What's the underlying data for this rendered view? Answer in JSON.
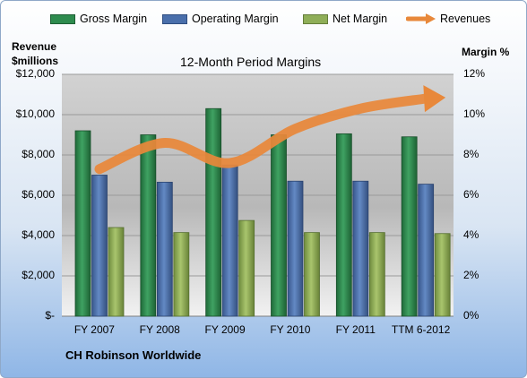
{
  "legend": {
    "gross": "Gross Margin",
    "operating": "Operating Margin",
    "net": "Net Margin",
    "revenues": "Revenues"
  },
  "title": "12-Month Period Margins",
  "left_axis_title": [
    "Revenue",
    "$millions"
  ],
  "right_axis_title": "Margin %",
  "footer": "CH Robinson Worldwide",
  "colors": {
    "gross": "#2e8b4e",
    "operating": "#4a6fab",
    "net": "#8fae58",
    "revenues": "#e8883a"
  },
  "chart_data": {
    "type": "bar",
    "categories": [
      "FY 2007",
      "FY 2008",
      "FY 2009",
      "FY 2010",
      "FY 2011",
      "TTM 6-2012"
    ],
    "series": [
      {
        "name": "Gross Margin",
        "axis": "right",
        "values": [
          9.2,
          9.0,
          10.3,
          9.0,
          9.05,
          8.9
        ]
      },
      {
        "name": "Operating Margin",
        "axis": "right",
        "values": [
          7.0,
          6.65,
          7.5,
          6.7,
          6.7,
          6.55
        ]
      },
      {
        "name": "Net Margin",
        "axis": "right",
        "values": [
          4.4,
          4.15,
          4.75,
          4.15,
          4.15,
          4.1
        ]
      },
      {
        "name": "Revenues",
        "axis": "left",
        "type": "line",
        "values": [
          7300,
          8600,
          7600,
          9300,
          10300,
          10800
        ]
      }
    ],
    "left_axis": {
      "ticks": [
        "$12,000",
        "$10,000",
        "$8,000",
        "$6,000",
        "$4,000",
        "$2,000",
        "$-"
      ],
      "ylim": [
        0,
        12000
      ]
    },
    "right_axis": {
      "ticks": [
        "12%",
        "10%",
        "8%",
        "6%",
        "4%",
        "2%",
        "0%"
      ],
      "ylim": [
        0,
        12
      ]
    },
    "grid": true
  }
}
